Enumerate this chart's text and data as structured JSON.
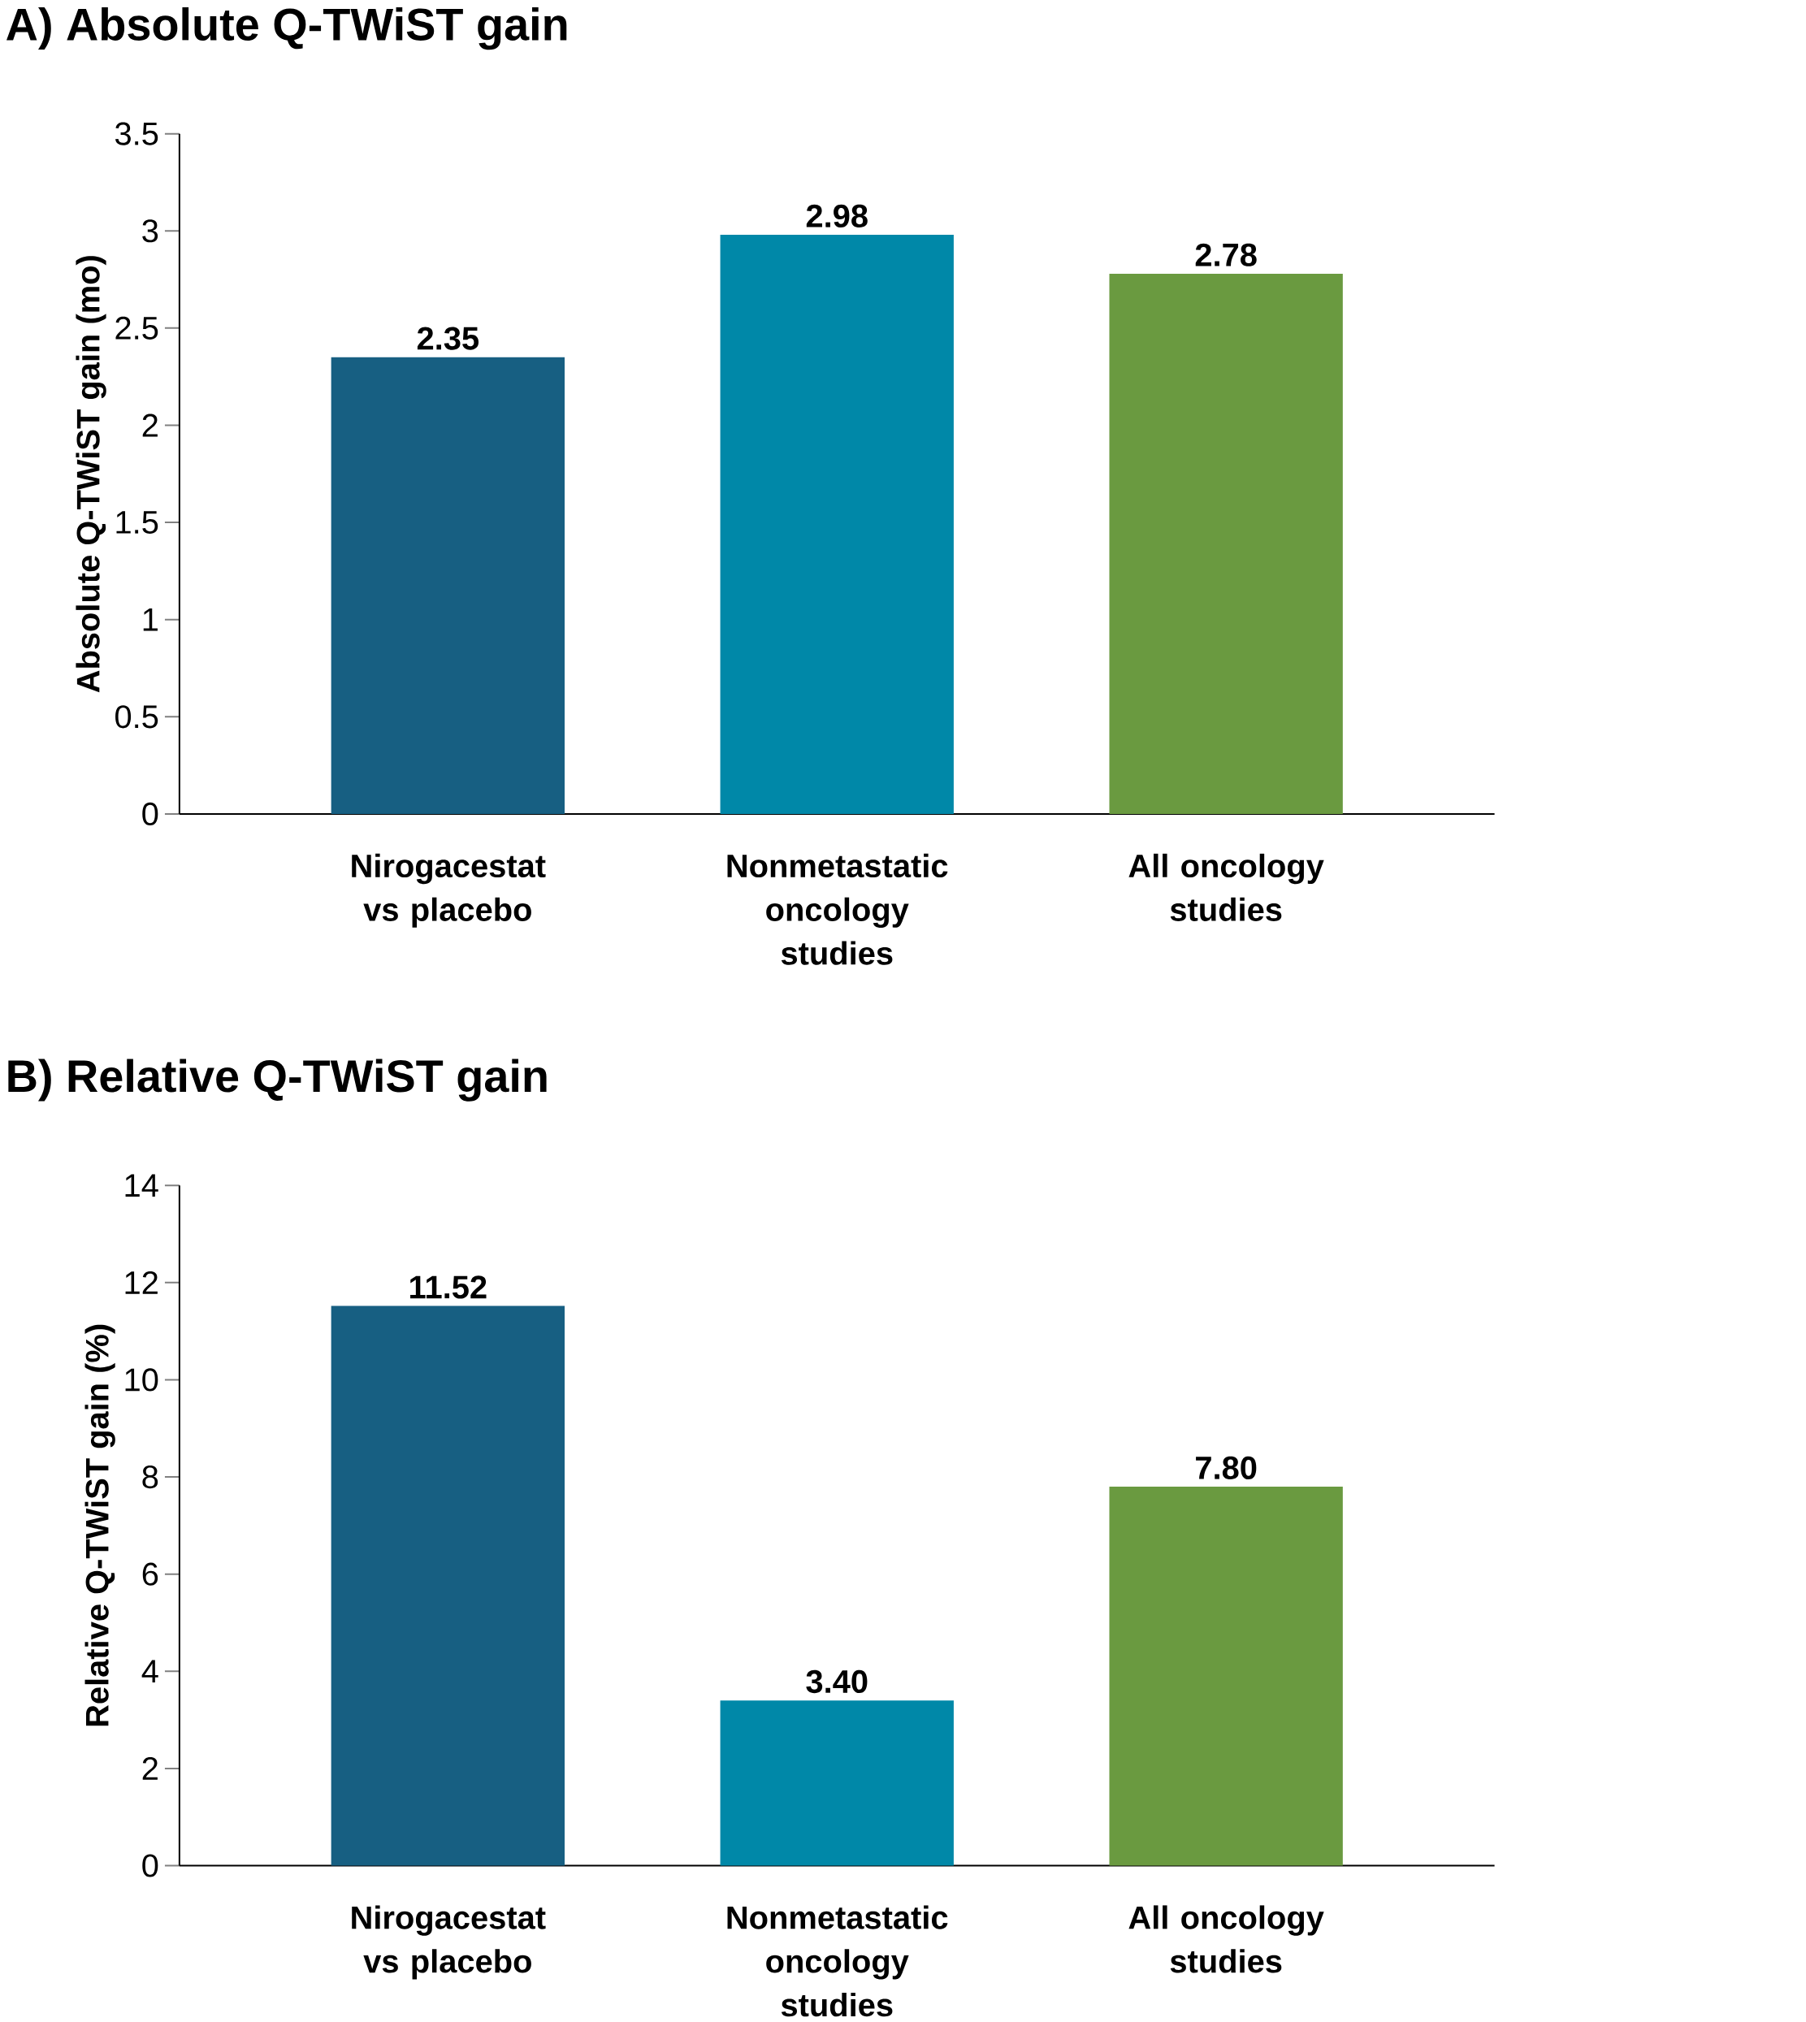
{
  "chart_data": [
    {
      "type": "bar",
      "title": "A) Absolute Q-TWiST gain",
      "ylabel": "Absolute Q-TWiST gain (mo)",
      "categories": [
        "Nirogacestat vs placebo",
        "Nonmetastatic oncology studies",
        "All oncology studies"
      ],
      "values": [
        2.35,
        2.98,
        2.78
      ],
      "colors": [
        "#175f82",
        "#0088a8",
        "#6a9a40"
      ],
      "ylim": [
        0,
        3.5
      ],
      "yticks": [
        0,
        0.5,
        1,
        1.5,
        2,
        2.5,
        3,
        3.5
      ],
      "data_labels": true
    },
    {
      "type": "bar",
      "title": "B) Relative Q-TWiST gain",
      "ylabel": "Relative Q-TWiST gain (%)",
      "categories": [
        "Nirogacestat vs placebo",
        "Nonmetastatic oncology studies",
        "All oncology studies"
      ],
      "values": [
        11.52,
        3.4,
        7.8
      ],
      "value_labels": [
        "11.52",
        "3.40",
        "7.80"
      ],
      "colors": [
        "#175f82",
        "#0088a8",
        "#6a9a40"
      ],
      "ylim": [
        0,
        14
      ],
      "yticks": [
        0,
        2,
        4,
        6,
        8,
        10,
        12,
        14
      ]
    }
  ]
}
